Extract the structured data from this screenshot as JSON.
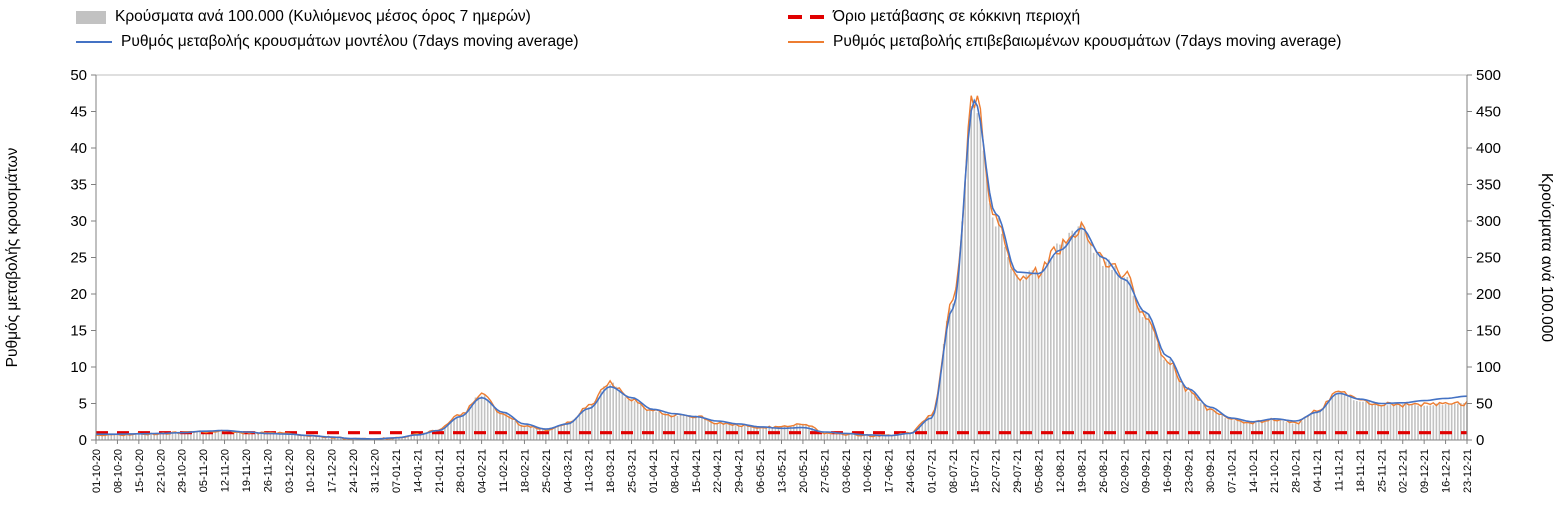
{
  "legend": {
    "bars": "Κρούσματα ανά 100.000 (Κυλιόμενος μέσος όρος 7 ημερών)",
    "threshold": "Όριο μετάβασης σε κόκκινη περιοχή",
    "model": "Ρυθμός μεταβολής κρουσμάτων μοντέλου (7days moving average)",
    "confirmed": "Ρυθμός μεταβολής επιβεβαιωμένων κρουσμάτων (7days moving average)"
  },
  "colors": {
    "bars": "#c2c2c2",
    "model": "#4472c4",
    "confirmed": "#ed7d31",
    "threshold": "#e00000",
    "plot_border": "#bfbfbf",
    "axis": "#808080"
  },
  "chart_data": {
    "type": "line",
    "x_step_days": 7,
    "x": [
      "01-10-20",
      "08-10-20",
      "15-10-20",
      "22-10-20",
      "29-10-20",
      "05-11-20",
      "12-11-20",
      "19-11-20",
      "26-11-20",
      "03-12-20",
      "10-12-20",
      "17-12-20",
      "24-12-20",
      "31-12-20",
      "07-01-21",
      "14-01-21",
      "21-01-21",
      "28-01-21",
      "04-02-21",
      "11-02-21",
      "18-02-21",
      "25-02-21",
      "04-03-21",
      "11-03-21",
      "18-03-21",
      "25-03-21",
      "01-04-21",
      "08-04-21",
      "15-04-21",
      "22-04-21",
      "29-04-21",
      "06-05-21",
      "13-05-21",
      "20-05-21",
      "27-05-21",
      "03-06-21",
      "10-06-21",
      "17-06-21",
      "24-06-21",
      "01-07-21",
      "08-07-21",
      "15-07-21",
      "22-07-21",
      "29-07-21",
      "05-08-21",
      "12-08-21",
      "19-08-21",
      "26-08-21",
      "02-09-21",
      "09-09-21",
      "16-09-21",
      "23-09-21",
      "30-09-21",
      "07-10-21",
      "14-10-21",
      "21-10-21",
      "28-10-21",
      "04-11-21",
      "11-11-21",
      "18-11-21",
      "25-11-21",
      "02-12-21",
      "09-12-21",
      "16-12-21",
      "23-12-21"
    ],
    "series": [
      {
        "id": "bars",
        "name": "Κρούσματα ανά 100.000 (Κυλιόμενος μέσος όρος 7 ημερών)",
        "kind": "bar",
        "axis": "right",
        "color": "#c2c2c2",
        "values": [
          7,
          7.5,
          8,
          9,
          10,
          11.5,
          12,
          10,
          9.5,
          8.5,
          6,
          3.5,
          1.5,
          1,
          3,
          8,
          14,
          34,
          62,
          36,
          20,
          14,
          23,
          46,
          78,
          55,
          40,
          34,
          33,
          24,
          20,
          17,
          18,
          22,
          10,
          8,
          6,
          6,
          10,
          33,
          190,
          470,
          300,
          225,
          230,
          265,
          293,
          245,
          225,
          170,
          110,
          68,
          42,
          28,
          24,
          28,
          23,
          40,
          65,
          54,
          49,
          48,
          48,
          49,
          50
        ]
      },
      {
        "id": "model",
        "name": "Ρυθμός μεταβολής κρουσμάτων μοντέλου (7days moving average)",
        "kind": "line",
        "axis": "left",
        "color": "#4472c4",
        "values": [
          0.8,
          0.8,
          0.85,
          0.9,
          1.0,
          1.2,
          1.3,
          1.1,
          0.9,
          0.8,
          0.6,
          0.4,
          0.2,
          0.15,
          0.3,
          0.7,
          1.3,
          3.2,
          5.8,
          3.8,
          2.2,
          1.5,
          2.2,
          4.3,
          7.3,
          5.8,
          4.2,
          3.6,
          3.2,
          2.6,
          2.2,
          1.8,
          1.6,
          1.7,
          1.1,
          0.9,
          0.7,
          0.6,
          0.9,
          3.0,
          18.0,
          46.5,
          31.0,
          23.0,
          22.8,
          26.0,
          29.0,
          25.0,
          22.0,
          17.5,
          11.5,
          7.0,
          4.5,
          3.0,
          2.5,
          2.9,
          2.6,
          3.8,
          6.4,
          5.6,
          5.0,
          5.1,
          5.4,
          5.7,
          6.0
        ]
      },
      {
        "id": "confirmed",
        "name": "Ρυθμός μεταβολής επιβεβαιωμένων κρουσμάτων (7days moving average)",
        "kind": "line",
        "axis": "left",
        "color": "#ed7d31",
        "values": [
          0.7,
          0.75,
          0.8,
          0.9,
          1.0,
          1.15,
          1.2,
          1.0,
          0.95,
          0.85,
          0.6,
          0.35,
          0.15,
          0.1,
          0.3,
          0.8,
          1.4,
          3.4,
          6.2,
          3.6,
          2.0,
          1.4,
          2.3,
          4.6,
          7.8,
          5.5,
          4.0,
          3.4,
          3.3,
          2.4,
          2.0,
          1.7,
          1.8,
          2.2,
          1.0,
          0.8,
          0.6,
          0.6,
          1.0,
          3.3,
          19.0,
          47.0,
          30.0,
          22.5,
          23.0,
          26.5,
          29.3,
          24.5,
          22.5,
          17.0,
          11.0,
          6.8,
          4.2,
          2.8,
          2.4,
          2.8,
          2.3,
          4.0,
          6.5,
          5.4,
          4.9,
          4.8,
          4.8,
          4.9,
          5.0
        ]
      },
      {
        "id": "threshold",
        "name": "Όριο μετάβασης σε κόκκινη περιοχή",
        "kind": "threshold",
        "axis": "left",
        "color": "#e00000",
        "value": 1
      }
    ],
    "left_axis": {
      "label": "Ρυθμός μεταβολής κρουσμάτων",
      "min": 0,
      "max": 50,
      "ticks": [
        0,
        5,
        10,
        15,
        20,
        25,
        30,
        35,
        40,
        45,
        50
      ]
    },
    "right_axis": {
      "label": "Κρούσματα ανά 100.000",
      "min": 0,
      "max": 500,
      "ticks": [
        0,
        50,
        100,
        150,
        200,
        250,
        300,
        350,
        400,
        450,
        500
      ]
    }
  }
}
